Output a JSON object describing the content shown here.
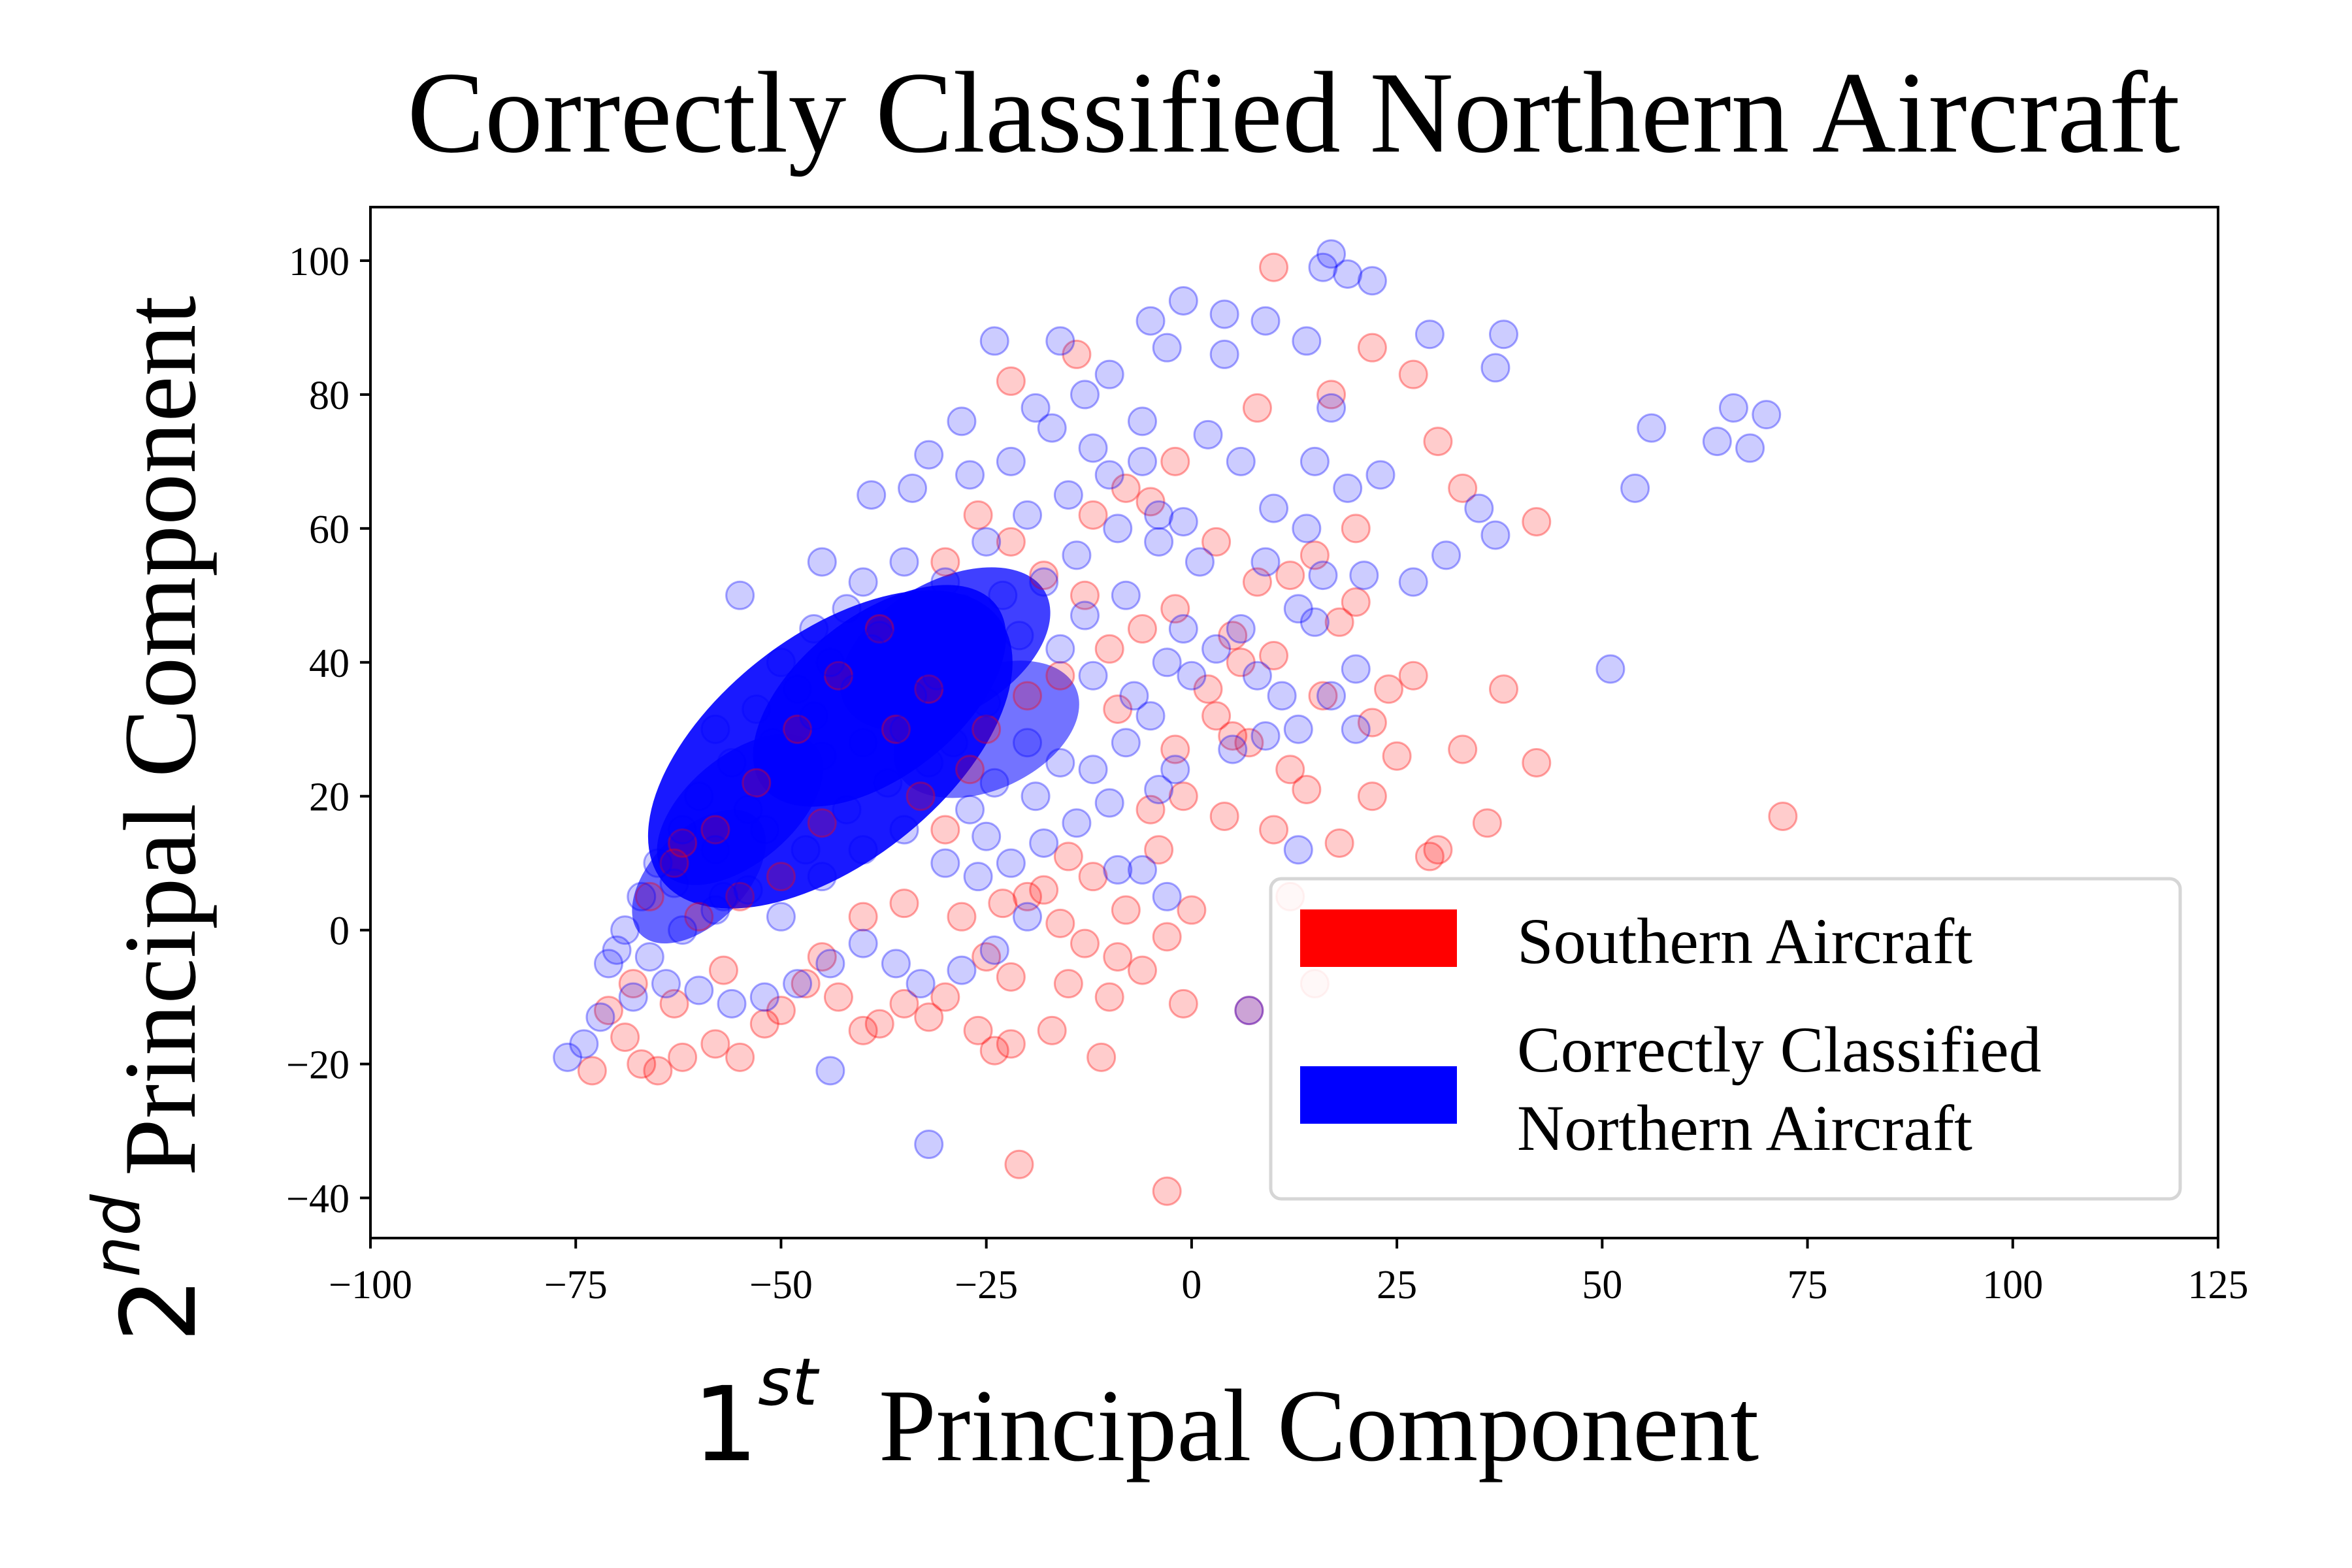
{
  "chart_data": {
    "type": "scatter",
    "title": "Correctly Classified Northern Aircraft",
    "xlabel": {
      "number": "1",
      "sup": "st",
      "text": "Principal Component"
    },
    "ylabel": {
      "number": "2",
      "sup": "nd",
      "text": "Principal Component"
    },
    "xlim": [
      -100,
      125
    ],
    "ylim": [
      -46,
      108
    ],
    "xticks": [
      -100,
      -75,
      -50,
      -25,
      0,
      25,
      50,
      75,
      100,
      125
    ],
    "xtick_labels": [
      "−100",
      "−75",
      "−50",
      "−25",
      "0",
      "25",
      "50",
      "75",
      "100",
      "125"
    ],
    "yticks": [
      -40,
      -20,
      0,
      20,
      40,
      60,
      80,
      100
    ],
    "ytick_labels": [
      "−40",
      "−20",
      "0",
      "20",
      "40",
      "60",
      "80",
      "100"
    ],
    "grid": false,
    "legend_placement": "lower-right",
    "series": [
      {
        "name": "Southern Aircraft",
        "color": "#ff0000",
        "points": [
          [
            10,
            99
          ],
          [
            -22,
            82
          ],
          [
            -14,
            86
          ],
          [
            22,
            87
          ],
          [
            27,
            83
          ],
          [
            17,
            80
          ],
          [
            8,
            78
          ],
          [
            30,
            73
          ],
          [
            33,
            66
          ],
          [
            42,
            61
          ],
          [
            20,
            60
          ],
          [
            15,
            56
          ],
          [
            12,
            53
          ],
          [
            8,
            52
          ],
          [
            -2,
            70
          ],
          [
            -5,
            64
          ],
          [
            -8,
            66
          ],
          [
            -12,
            62
          ],
          [
            3,
            58
          ],
          [
            -2,
            48
          ],
          [
            5,
            44
          ],
          [
            10,
            41
          ],
          [
            18,
            46
          ],
          [
            20,
            49
          ],
          [
            24,
            36
          ],
          [
            27,
            38
          ],
          [
            22,
            31
          ],
          [
            38,
            36
          ],
          [
            42,
            25
          ],
          [
            36,
            16
          ],
          [
            30,
            12
          ],
          [
            29,
            11
          ],
          [
            18,
            13
          ],
          [
            22,
            20
          ],
          [
            72,
            17
          ],
          [
            5,
            29
          ],
          [
            7,
            28
          ],
          [
            3,
            32
          ],
          [
            -2,
            27
          ],
          [
            10,
            15
          ],
          [
            12,
            24
          ],
          [
            14,
            21
          ],
          [
            -5,
            18
          ],
          [
            -1,
            20
          ],
          [
            0,
            3
          ],
          [
            -3,
            -1
          ],
          [
            -6,
            -6
          ],
          [
            -9,
            -4
          ],
          [
            -13,
            -2
          ],
          [
            -16,
            1
          ],
          [
            -18,
            6
          ],
          [
            -20,
            5
          ],
          [
            -12,
            8
          ],
          [
            -15,
            11
          ],
          [
            -10,
            -10
          ],
          [
            -11,
            -19
          ],
          [
            -15,
            -8
          ],
          [
            -17,
            -15
          ],
          [
            -22,
            -17
          ],
          [
            -24,
            -18
          ],
          [
            -26,
            -15
          ],
          [
            -30,
            -10
          ],
          [
            -32,
            -13
          ],
          [
            -35,
            -11
          ],
          [
            -38,
            -14
          ],
          [
            -40,
            -15
          ],
          [
            -43,
            -10
          ],
          [
            -47,
            -8
          ],
          [
            -50,
            -12
          ],
          [
            -52,
            -14
          ],
          [
            -55,
            -19
          ],
          [
            -58,
            -17
          ],
          [
            -62,
            -19
          ],
          [
            -65,
            -21
          ],
          [
            -67,
            -20
          ],
          [
            -69,
            -16
          ],
          [
            -73,
            -21
          ],
          [
            -63,
            -11
          ],
          [
            -57,
            -6
          ],
          [
            -45,
            -4
          ],
          [
            -40,
            2
          ],
          [
            -35,
            4
          ],
          [
            -28,
            2
          ],
          [
            -25,
            -4
          ],
          [
            -22,
            -7
          ],
          [
            -21,
            -35
          ],
          [
            -3,
            -39
          ],
          [
            -1,
            -11
          ],
          [
            7,
            -12
          ],
          [
            15,
            -8
          ],
          [
            -23,
            4
          ],
          [
            -30,
            15
          ],
          [
            -33,
            20
          ],
          [
            -27,
            24
          ],
          [
            -25,
            30
          ],
          [
            -20,
            35
          ],
          [
            -16,
            38
          ],
          [
            -10,
            42
          ],
          [
            -18,
            53
          ],
          [
            -22,
            58
          ],
          [
            -26,
            62
          ],
          [
            -30,
            55
          ],
          [
            -38,
            45
          ],
          [
            -43,
            38
          ],
          [
            -48,
            30
          ],
          [
            -53,
            22
          ],
          [
            -58,
            15
          ],
          [
            -63,
            10
          ],
          [
            -66,
            5
          ],
          [
            -60,
            2
          ],
          [
            -55,
            5
          ],
          [
            -68,
            -8
          ],
          [
            -71,
            -12
          ],
          [
            -62,
            13
          ],
          [
            2,
            36
          ],
          [
            6,
            40
          ],
          [
            -6,
            45
          ],
          [
            -13,
            50
          ],
          [
            -9,
            33
          ],
          [
            -4,
            12
          ],
          [
            4,
            17
          ],
          [
            16,
            35
          ],
          [
            25,
            26
          ],
          [
            33,
            27
          ],
          [
            12,
            5
          ],
          [
            -8,
            3
          ],
          [
            -36,
            30
          ],
          [
            -32,
            36
          ],
          [
            -45,
            16
          ],
          [
            -50,
            8
          ]
        ]
      },
      {
        "name": "Correctly Classified Northern Aircraft",
        "color": "#0000ff",
        "points": [
          [
            17,
            101
          ],
          [
            16,
            99
          ],
          [
            19,
            98
          ],
          [
            22,
            97
          ],
          [
            -1,
            94
          ],
          [
            4,
            92
          ],
          [
            -5,
            91
          ],
          [
            9,
            91
          ],
          [
            14,
            88
          ],
          [
            29,
            89
          ],
          [
            38,
            89
          ],
          [
            -3,
            87
          ],
          [
            4,
            86
          ],
          [
            -24,
            88
          ],
          [
            -16,
            88
          ],
          [
            37,
            84
          ],
          [
            -10,
            83
          ],
          [
            -13,
            80
          ],
          [
            -19,
            78
          ],
          [
            17,
            78
          ],
          [
            66,
            78
          ],
          [
            70,
            77
          ],
          [
            56,
            75
          ],
          [
            64,
            73
          ],
          [
            68,
            72
          ],
          [
            -6,
            76
          ],
          [
            2,
            74
          ],
          [
            -28,
            76
          ],
          [
            -32,
            71
          ],
          [
            6,
            70
          ],
          [
            15,
            70
          ],
          [
            19,
            66
          ],
          [
            23,
            68
          ],
          [
            -34,
            66
          ],
          [
            -39,
            65
          ],
          [
            -1,
            61
          ],
          [
            10,
            63
          ],
          [
            14,
            60
          ],
          [
            54,
            66
          ],
          [
            35,
            63
          ],
          [
            37,
            59
          ],
          [
            31,
            56
          ],
          [
            27,
            52
          ],
          [
            21,
            53
          ],
          [
            16,
            53
          ],
          [
            9,
            55
          ],
          [
            -4,
            58
          ],
          [
            -8,
            50
          ],
          [
            -13,
            47
          ],
          [
            13,
            48
          ],
          [
            15,
            46
          ],
          [
            51,
            39
          ],
          [
            20,
            39
          ],
          [
            17,
            35
          ],
          [
            13,
            30
          ],
          [
            20,
            30
          ],
          [
            9,
            29
          ],
          [
            5,
            27
          ],
          [
            -2,
            24
          ],
          [
            -4,
            21
          ],
          [
            -10,
            19
          ],
          [
            -14,
            16
          ],
          [
            -18,
            13
          ],
          [
            -22,
            10
          ],
          [
            -26,
            8
          ],
          [
            -6,
            9
          ],
          [
            -9,
            9
          ],
          [
            -3,
            5
          ],
          [
            -20,
            2
          ],
          [
            -24,
            -3
          ],
          [
            -28,
            -6
          ],
          [
            -33,
            -8
          ],
          [
            -36,
            -5
          ],
          [
            -40,
            -2
          ],
          [
            -44,
            -5
          ],
          [
            -48,
            -8
          ],
          [
            -52,
            -10
          ],
          [
            -56,
            -11
          ],
          [
            -60,
            -9
          ],
          [
            -64,
            -8
          ],
          [
            -68,
            -10
          ],
          [
            -72,
            -13
          ],
          [
            -74,
            -17
          ],
          [
            -76,
            -19
          ],
          [
            -71,
            -5
          ],
          [
            -66,
            -4
          ],
          [
            -62,
            0
          ],
          [
            -58,
            3
          ],
          [
            -54,
            6
          ],
          [
            -44,
            -21
          ],
          [
            -32,
            -32
          ],
          [
            7,
            -12
          ],
          [
            13,
            12
          ],
          [
            -55,
            50
          ],
          [
            -45,
            55
          ],
          [
            -40,
            52
          ],
          [
            -35,
            55
          ],
          [
            -30,
            52
          ],
          [
            -25,
            58
          ],
          [
            -20,
            62
          ],
          [
            -15,
            65
          ],
          [
            -10,
            68
          ],
          [
            -6,
            70
          ],
          [
            -22,
            70
          ],
          [
            -27,
            68
          ],
          [
            -12,
            72
          ],
          [
            -17,
            75
          ],
          [
            -50,
            40
          ],
          [
            -46,
            45
          ],
          [
            -42,
            48
          ],
          [
            -38,
            44
          ],
          [
            -33,
            46
          ],
          [
            -28,
            48
          ],
          [
            -23,
            50
          ],
          [
            -18,
            52
          ],
          [
            -14,
            56
          ],
          [
            -9,
            60
          ],
          [
            -4,
            62
          ],
          [
            1,
            55
          ],
          [
            -1,
            45
          ],
          [
            -3,
            40
          ],
          [
            -7,
            35
          ],
          [
            -12,
            38
          ],
          [
            -16,
            42
          ],
          [
            -21,
            44
          ],
          [
            -26,
            40
          ],
          [
            -31,
            38
          ],
          [
            -36,
            40
          ],
          [
            -41,
            36
          ],
          [
            -46,
            32
          ],
          [
            -51,
            28
          ],
          [
            -56,
            25
          ],
          [
            -60,
            20
          ],
          [
            -62,
            15
          ],
          [
            -65,
            10
          ],
          [
            -67,
            5
          ],
          [
            -69,
            0
          ],
          [
            -70,
            -3
          ],
          [
            -63,
            7
          ],
          [
            -58,
            12
          ],
          [
            -54,
            18
          ],
          [
            -49,
            22
          ],
          [
            -45,
            26
          ],
          [
            -40,
            28
          ],
          [
            -35,
            30
          ],
          [
            -30,
            32
          ],
          [
            -25,
            34
          ],
          [
            -20,
            28
          ],
          [
            -16,
            25
          ],
          [
            -12,
            24
          ],
          [
            -8,
            28
          ],
          [
            -5,
            32
          ],
          [
            0,
            38
          ],
          [
            3,
            42
          ],
          [
            6,
            45
          ],
          [
            8,
            38
          ],
          [
            11,
            35
          ],
          [
            -58,
            30
          ],
          [
            -53,
            33
          ],
          [
            -48,
            36
          ],
          [
            -44,
            40
          ],
          [
            -39,
            42
          ],
          [
            -34,
            35
          ],
          [
            -29,
            28
          ],
          [
            -24,
            22
          ],
          [
            -19,
            20
          ],
          [
            -52,
            15
          ],
          [
            -47,
            12
          ],
          [
            -42,
            18
          ],
          [
            -37,
            22
          ],
          [
            -32,
            25
          ],
          [
            -27,
            18
          ],
          [
            -57,
            5
          ],
          [
            -50,
            2
          ],
          [
            -45,
            8
          ],
          [
            -40,
            12
          ],
          [
            -35,
            15
          ],
          [
            -30,
            10
          ],
          [
            -25,
            14
          ]
        ]
      }
    ]
  },
  "legend": {
    "entries": [
      {
        "lines": [
          "Southern Aircraft"
        ],
        "color": "#ff0000"
      },
      {
        "lines": [
          "Correctly Classified",
          "Northern Aircraft"
        ],
        "color": "#0000ff"
      }
    ]
  }
}
